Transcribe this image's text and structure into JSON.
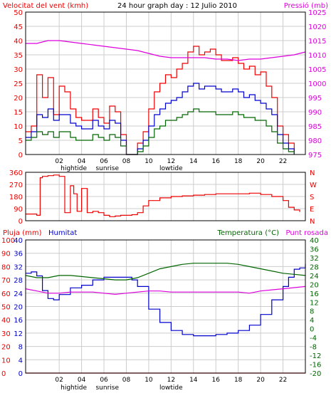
{
  "header": {
    "left_title": "Velocitat del vent (kmh)",
    "center_title": "24 hour graph day : 12 Julio 2010",
    "right_title": "Pressió (mb)"
  },
  "colors": {
    "red": "#ee0000",
    "blue": "#0000cc",
    "green": "#006600",
    "magenta": "#dd00dd",
    "grid": "#cccccc",
    "frame": "#000000"
  },
  "chart_data": [
    {
      "type": "line",
      "panel": "wind-pressure",
      "x_unit": "hour",
      "xlim": [
        -1,
        24
      ],
      "x_ticks": [
        "02",
        "04",
        "06",
        "08",
        "10",
        "12",
        "14",
        "16",
        "18",
        "20",
        "22",
        ""
      ],
      "x_tick_hours": [
        2,
        4,
        6,
        8,
        10,
        12,
        14,
        16,
        18,
        20,
        22,
        24
      ],
      "annotations": [
        {
          "text": "hightide",
          "hour": 3.3
        },
        {
          "text": "sunrise",
          "hour": 6.3
        },
        {
          "text": "lowtide",
          "hour": 12.0
        }
      ],
      "ylabel_left": "Velocitat del vent (kmh)",
      "ylim_left": [
        0,
        50
      ],
      "y_ticks_left": [
        0,
        5,
        10,
        15,
        20,
        25,
        30,
        35,
        40,
        45,
        50
      ],
      "ylabel_right": "Pressió (mb)",
      "ylim_right": [
        975,
        1025
      ],
      "y_ticks_right": [
        975,
        980,
        985,
        990,
        995,
        1000,
        1005,
        1010,
        1015,
        1020,
        1025
      ],
      "series": [
        {
          "key": "gust",
          "axis": "left",
          "color": "#ee0000",
          "x": [
            -1,
            -0.5,
            0,
            0.5,
            1,
            1.5,
            2,
            2.5,
            3,
            3.5,
            4,
            4.5,
            5,
            5.5,
            6,
            6.5,
            7,
            7.5,
            8,
            8.5,
            9,
            9.5,
            10,
            10.5,
            11,
            11.5,
            12,
            12.5,
            13,
            13.5,
            14,
            14.5,
            15,
            15.5,
            16,
            16.5,
            17,
            17.5,
            18,
            18.5,
            19,
            19.5,
            20,
            20.5,
            21,
            21.5,
            22,
            22.5,
            23
          ],
          "values": [
            8,
            10,
            28,
            20,
            27,
            14,
            24,
            22,
            16,
            13,
            12,
            12,
            16,
            13,
            11,
            17,
            15,
            7,
            0,
            0,
            4,
            8,
            16,
            22,
            25,
            28,
            27,
            30,
            32,
            36,
            38,
            35,
            36,
            37,
            35,
            33,
            33,
            34,
            32,
            30,
            31,
            28,
            29,
            24,
            20,
            10,
            7,
            4,
            0
          ]
        },
        {
          "key": "wind",
          "axis": "left",
          "color": "#0000cc",
          "x": [
            -1,
            -0.5,
            0,
            0.5,
            1,
            1.5,
            2,
            2.5,
            3,
            3.5,
            4,
            4.5,
            5,
            5.5,
            6,
            6.5,
            7,
            7.5,
            8,
            8.5,
            9,
            9.5,
            10,
            10.5,
            11,
            11.5,
            12,
            12.5,
            13,
            13.5,
            14,
            14.5,
            15,
            15.5,
            16,
            16.5,
            17,
            17.5,
            18,
            18.5,
            19,
            19.5,
            20,
            20.5,
            21,
            21.5,
            22,
            22.5,
            23
          ],
          "values": [
            6,
            8,
            14,
            13,
            16,
            12,
            14,
            14,
            11,
            10,
            9,
            9,
            12,
            10,
            9,
            12,
            11,
            5,
            0,
            0,
            2,
            5,
            10,
            14,
            16,
            18,
            19,
            20,
            22,
            24,
            25,
            23,
            24,
            24,
            23,
            22,
            22,
            23,
            22,
            20,
            21,
            19,
            18,
            16,
            14,
            7,
            4,
            2,
            0
          ]
        },
        {
          "key": "avg",
          "axis": "left",
          "color": "#006600",
          "x": [
            -1,
            -0.5,
            0,
            0.5,
            1,
            1.5,
            2,
            2.5,
            3,
            3.5,
            4,
            4.5,
            5,
            5.5,
            6,
            6.5,
            7,
            7.5,
            8,
            8.5,
            9,
            9.5,
            10,
            10.5,
            11,
            11.5,
            12,
            12.5,
            13,
            13.5,
            14,
            14.5,
            15,
            15.5,
            16,
            16.5,
            17,
            17.5,
            18,
            18.5,
            19,
            19.5,
            20,
            20.5,
            21,
            21.5,
            22,
            22.5,
            23
          ],
          "values": [
            5,
            6,
            8,
            7,
            8,
            6,
            8,
            8,
            6,
            5,
            5,
            5,
            7,
            6,
            5,
            7,
            6,
            3,
            0,
            0,
            1,
            3,
            6,
            9,
            10,
            12,
            12,
            13,
            14,
            15,
            16,
            15,
            15,
            15,
            14,
            14,
            14,
            15,
            14,
            13,
            13,
            12,
            12,
            10,
            8,
            4,
            2,
            1,
            0
          ]
        },
        {
          "key": "pressure",
          "axis": "right",
          "color": "#dd00dd",
          "x": [
            -1,
            0,
            1,
            2,
            3,
            4,
            5,
            6,
            7,
            8,
            9,
            10,
            11,
            12,
            13,
            14,
            15,
            16,
            17,
            18,
            19,
            20,
            21,
            22,
            23,
            24
          ],
          "values": [
            1014,
            1014,
            1015,
            1015,
            1014.5,
            1014,
            1013.5,
            1013,
            1012.5,
            1012,
            1011.5,
            1010.5,
            1009.5,
            1009,
            1009,
            1009,
            1009,
            1008.5,
            1008.5,
            1008,
            1008.5,
            1008.5,
            1009,
            1009.5,
            1010,
            1011
          ]
        }
      ]
    },
    {
      "type": "line",
      "panel": "wind-direction",
      "x_unit": "hour",
      "xlim": [
        -1,
        24
      ],
      "x_tick_hours": [
        2,
        4,
        6,
        8,
        10,
        12,
        14,
        16,
        18,
        20,
        22,
        24
      ],
      "ylim": [
        0,
        360
      ],
      "y_ticks_left": [
        0,
        90,
        180,
        270,
        360
      ],
      "y_ticks_right": [
        "N",
        "E",
        "S",
        "W",
        "N"
      ],
      "series": [
        {
          "key": "direction",
          "color": "#ee0000",
          "x": [
            -1,
            -0.5,
            0,
            0.3,
            0.5,
            1,
            1.5,
            2,
            2.5,
            3,
            3.3,
            3.6,
            4,
            4.5,
            5,
            5.5,
            6,
            6.5,
            7,
            7.5,
            8,
            8.5,
            9,
            9.5,
            10,
            11,
            12,
            13,
            14,
            15,
            16,
            17,
            18,
            19,
            20,
            21,
            22,
            22.5,
            23,
            23.5
          ],
          "values": [
            50,
            50,
            40,
            320,
            330,
            335,
            340,
            330,
            60,
            260,
            200,
            70,
            240,
            60,
            70,
            60,
            40,
            30,
            35,
            40,
            40,
            45,
            60,
            110,
            150,
            170,
            180,
            185,
            190,
            195,
            200,
            200,
            200,
            205,
            195,
            180,
            150,
            100,
            80,
            65
          ]
        }
      ]
    },
    {
      "type": "line",
      "panel": "humidity-temperature",
      "x_unit": "hour",
      "xlim": [
        -1,
        24
      ],
      "x_tick_hours": [
        2,
        4,
        6,
        8,
        10,
        12,
        14,
        16,
        18,
        20,
        22,
        24
      ],
      "annotations": [
        {
          "text": "hightide",
          "hour": 3.3
        },
        {
          "text": "sunrise",
          "hour": 6.3
        },
        {
          "text": "lowtide",
          "hour": 12.0
        }
      ],
      "legend": [
        "Pluja (mm)",
        "Humitat",
        "Temperatura (°C)",
        "Punt rosada"
      ],
      "y_ticks_outer_left": [
        0,
        10,
        20,
        30,
        40,
        50,
        60,
        70,
        80,
        90,
        100
      ],
      "ylim_humidity": [
        0,
        100
      ],
      "y_ticks_inner_left": [
        0,
        4,
        8,
        12,
        16,
        20,
        24,
        28,
        32,
        36,
        40
      ],
      "ylim_rain": [
        0,
        40
      ],
      "y_ticks_right": [
        -20,
        -16,
        -12,
        -8,
        -4,
        0,
        4,
        8,
        12,
        16,
        20,
        24,
        28,
        32,
        36,
        40
      ],
      "ylim_temp": [
        -20,
        40
      ],
      "series": [
        {
          "key": "humidity",
          "axis": "humidity",
          "color": "#0000cc",
          "x": [
            -1,
            -0.5,
            0,
            0.5,
            1,
            1.5,
            2,
            3,
            4,
            5,
            6,
            7,
            8,
            8.5,
            9,
            10,
            11,
            12,
            13,
            14,
            15,
            16,
            17,
            18,
            19,
            20,
            21,
            22,
            22.5,
            23,
            23.5,
            24
          ],
          "values": [
            75,
            76,
            73,
            62,
            56,
            55,
            59,
            64,
            66,
            70,
            72,
            72,
            72,
            70,
            65,
            48,
            38,
            32,
            29,
            28,
            28,
            29,
            30,
            32,
            36,
            44,
            55,
            65,
            72,
            78,
            79,
            82
          ]
        },
        {
          "key": "rain",
          "axis": "rain",
          "color": "#ee0000",
          "x": [
            -1,
            24
          ],
          "values": [
            0,
            0
          ]
        },
        {
          "key": "temperature",
          "axis": "temp",
          "color": "#006600",
          "x": [
            -1,
            0,
            1,
            2,
            3,
            4,
            5,
            6,
            7,
            8,
            9,
            10,
            11,
            12,
            13,
            14,
            15,
            16,
            17,
            18,
            19,
            20,
            21,
            22,
            23,
            24
          ],
          "values": [
            24,
            23,
            23,
            24,
            24,
            23.5,
            23,
            22.5,
            22,
            22,
            23,
            25,
            27,
            28,
            29,
            29.5,
            29.5,
            29.5,
            29.5,
            29,
            28,
            27,
            26,
            25,
            24.5,
            24
          ]
        },
        {
          "key": "dewpoint",
          "axis": "temp",
          "color": "#dd00dd",
          "x": [
            -1,
            0,
            1,
            2,
            3,
            4,
            5,
            6,
            7,
            8,
            9,
            10,
            11,
            12,
            13,
            14,
            15,
            16,
            17,
            18,
            19,
            20,
            21,
            22,
            23,
            24
          ],
          "values": [
            18,
            17,
            16,
            16,
            16.5,
            16.5,
            16.5,
            16,
            15.5,
            16,
            16.5,
            17,
            17,
            16.5,
            16.5,
            16.5,
            16.5,
            16.5,
            16.5,
            16.5,
            16,
            17,
            17.5,
            18,
            18.5,
            19
          ]
        }
      ]
    }
  ]
}
